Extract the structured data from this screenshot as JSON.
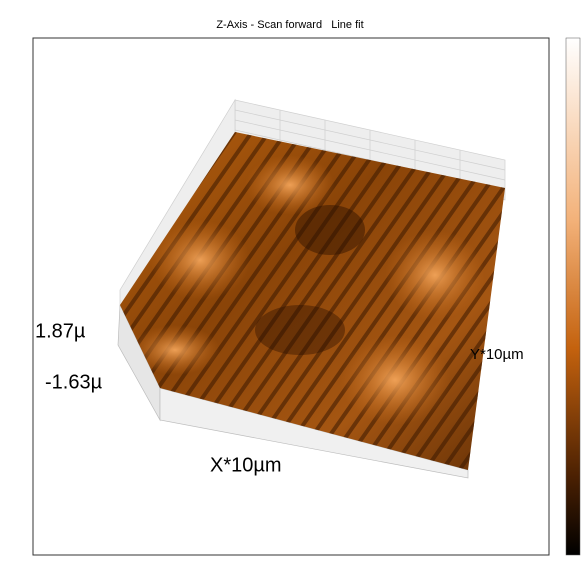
{
  "title": "Z-Axis - Scan forward   Line fit",
  "z_max_label": "1.87µ",
  "z_min_label": "-1.63µ",
  "y_axis_label": "Y*10µm",
  "x_axis_label": "X*10µm"
}
